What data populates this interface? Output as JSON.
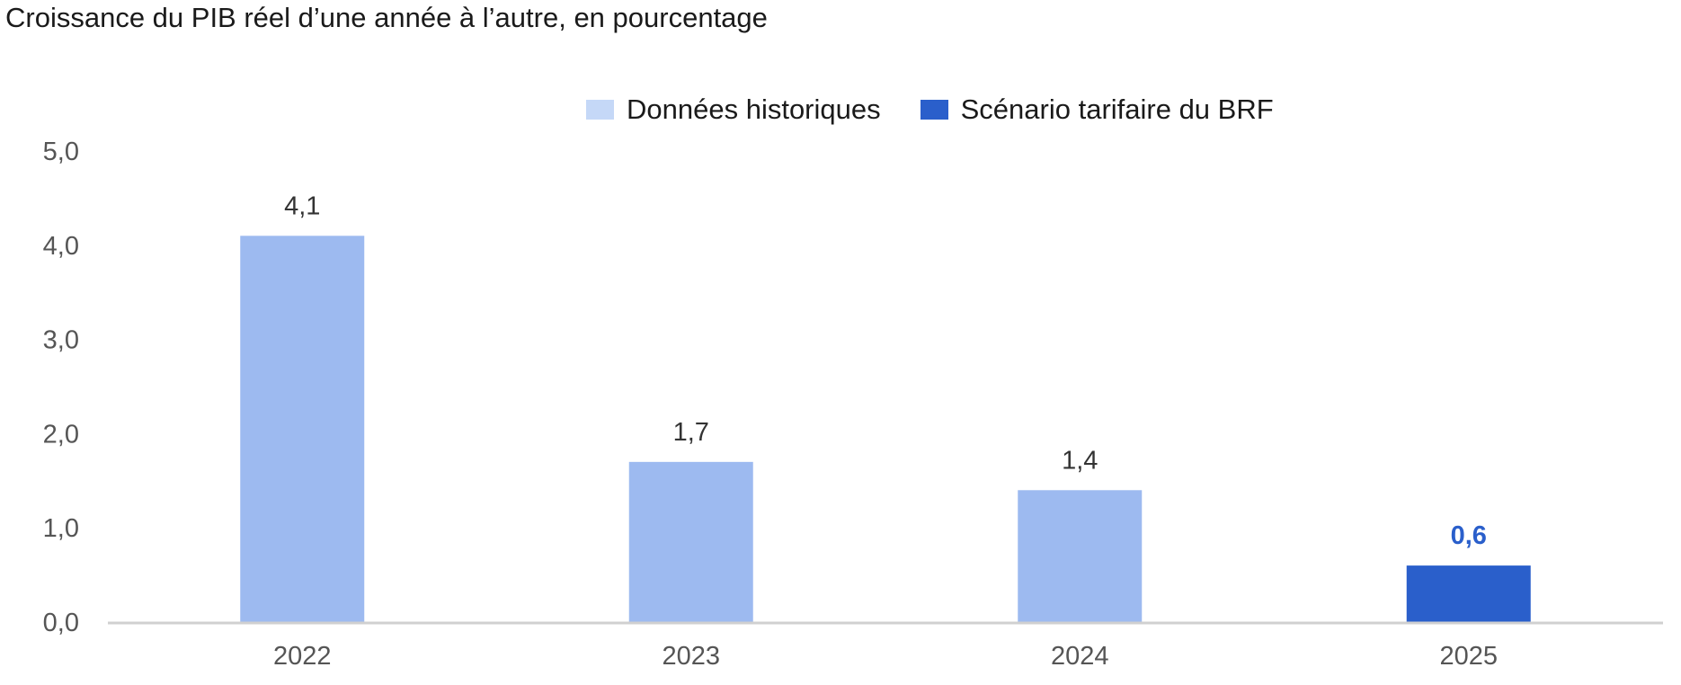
{
  "chart_data": {
    "type": "bar",
    "title": "Croissance du PIB réel d’une année à l’autre, en pourcentage",
    "xlabel": "",
    "ylabel": "",
    "categories": [
      "2022",
      "2023",
      "2024",
      "2025"
    ],
    "values": [
      4.1,
      1.7,
      1.4,
      0.6
    ],
    "value_labels": [
      "4,1",
      "1,7",
      "1,4",
      "0,6"
    ],
    "bar_series": [
      "historical",
      "historical",
      "historical",
      "scenario"
    ],
    "series": [
      {
        "key": "historical",
        "name": "Données historiques",
        "color": "#9dbaf0",
        "legend_color": "#c5d8f7"
      },
      {
        "key": "scenario",
        "name": "Scénario tarifaire du BRF",
        "color": "#2a5fcb",
        "legend_color": "#2a5fcb"
      }
    ],
    "ylim": [
      0,
      5
    ],
    "yticks": [
      0,
      1,
      2,
      3,
      4,
      5
    ],
    "ytick_labels": [
      "0,0",
      "1,0",
      "2,0",
      "3,0",
      "4,0",
      "5,0"
    ],
    "grid": false,
    "legend_position": "top-center",
    "axis_color": "#d0d0d0"
  }
}
